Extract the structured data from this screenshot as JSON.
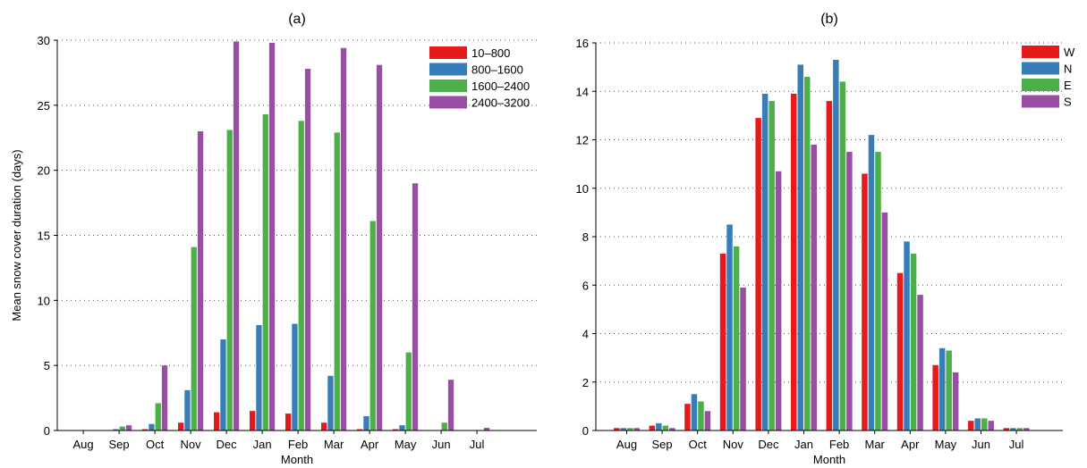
{
  "chart_data": [
    {
      "type": "bar",
      "panel_label": "(a)",
      "xlabel": "Month",
      "ylabel": "Mean snow cover duration (days)",
      "categories": [
        "Aug",
        "Sep",
        "Oct",
        "Nov",
        "Dec",
        "Jan",
        "Feb",
        "Mar",
        "Apr",
        "May",
        "Jun",
        "Jul"
      ],
      "ylim": [
        0,
        30
      ],
      "yticks": [
        0,
        5,
        10,
        15,
        20,
        25,
        30
      ],
      "grid": "horizontal dotted",
      "legend_position": "top-right",
      "series": [
        {
          "name": "10–800",
          "color": "#e41a1c",
          "values": [
            0,
            0,
            0.1,
            0.6,
            1.4,
            1.5,
            1.3,
            0.6,
            0.1,
            0.1,
            0,
            0
          ]
        },
        {
          "name": "800–1600",
          "color": "#377eb8",
          "values": [
            0,
            0.1,
            0.5,
            3.1,
            7.0,
            8.1,
            8.2,
            4.2,
            1.1,
            0.4,
            0,
            0
          ]
        },
        {
          "name": "1600–2400",
          "color": "#4daf4a",
          "values": [
            0,
            0.3,
            2.1,
            14.1,
            23.1,
            24.3,
            23.8,
            22.9,
            16.1,
            6.0,
            0.6,
            0
          ]
        },
        {
          "name": "2400–3200",
          "color": "#984ea3",
          "values": [
            0,
            0.4,
            5.0,
            23.0,
            29.9,
            29.8,
            27.8,
            29.4,
            28.1,
            19.0,
            3.9,
            0.2
          ]
        }
      ]
    },
    {
      "type": "bar",
      "panel_label": "(b)",
      "xlabel": "Month",
      "ylabel": "",
      "categories": [
        "Aug",
        "Sep",
        "Oct",
        "Nov",
        "Dec",
        "Jan",
        "Feb",
        "Mar",
        "Apr",
        "May",
        "Jun",
        "Jul"
      ],
      "ylim": [
        0,
        16
      ],
      "yticks": [
        0,
        2,
        4,
        6,
        8,
        10,
        12,
        14,
        16
      ],
      "grid": "horizontal dotted",
      "legend_position": "top-right",
      "series": [
        {
          "name": "W",
          "color": "#e41a1c",
          "values": [
            0.1,
            0.2,
            1.1,
            7.3,
            12.9,
            13.9,
            13.6,
            10.6,
            6.5,
            2.7,
            0.4,
            0.1
          ]
        },
        {
          "name": "N",
          "color": "#377eb8",
          "values": [
            0.1,
            0.3,
            1.5,
            8.5,
            13.9,
            15.1,
            15.3,
            12.2,
            7.8,
            3.4,
            0.5,
            0.1
          ]
        },
        {
          "name": "E",
          "color": "#4daf4a",
          "values": [
            0.1,
            0.2,
            1.2,
            7.6,
            13.6,
            14.6,
            14.4,
            11.5,
            7.3,
            3.3,
            0.5,
            0.1
          ]
        },
        {
          "name": "S",
          "color": "#984ea3",
          "values": [
            0.1,
            0.1,
            0.8,
            5.9,
            10.7,
            11.8,
            11.5,
            9.0,
            5.6,
            2.4,
            0.4,
            0.1
          ]
        }
      ]
    }
  ]
}
